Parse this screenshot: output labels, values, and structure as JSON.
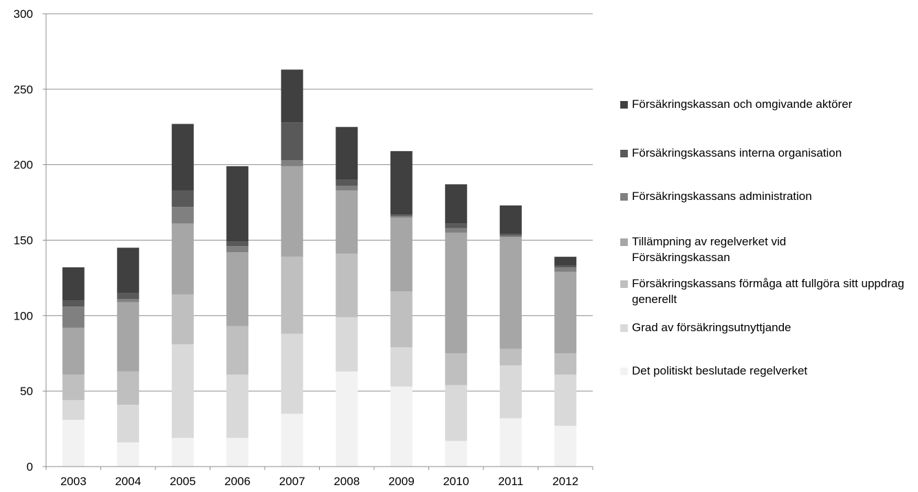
{
  "chart_data": {
    "type": "bar",
    "stacked": true,
    "categories": [
      "2003",
      "2004",
      "2005",
      "2006",
      "2007",
      "2008",
      "2009",
      "2010",
      "2011",
      "2012"
    ],
    "ylim": [
      0,
      300
    ],
    "yticks": [
      "0",
      "50",
      "100",
      "150",
      "200",
      "250",
      "300"
    ],
    "grid": true,
    "legend_position": "right",
    "series": [
      {
        "name": "Det politiskt beslutade regelverket",
        "color": "#f2f2f2",
        "values": [
          31,
          16,
          19,
          19,
          35,
          63,
          53,
          17,
          32,
          27
        ]
      },
      {
        "name": "Grad av försäkringsutnyttjande",
        "color": "#d9d9d9",
        "values": [
          13,
          25,
          62,
          42,
          53,
          36,
          26,
          37,
          35,
          34
        ]
      },
      {
        "name": "Försäkringskassans förmåga att fullgöra sitt uppdrag generellt",
        "color": "#bfbfbf",
        "values": [
          17,
          22,
          33,
          32,
          51,
          42,
          37,
          21,
          11,
          14
        ]
      },
      {
        "name": "Tillämpning av regelverket vid Försäkringskassan",
        "color": "#a6a6a6",
        "values": [
          31,
          46,
          47,
          49,
          60,
          42,
          49,
          80,
          74,
          54
        ]
      },
      {
        "name": "Försäkringskassans administration",
        "color": "#808080",
        "values": [
          14,
          2,
          11,
          4,
          4,
          3,
          1,
          3,
          1,
          3
        ]
      },
      {
        "name": "Försäkringskassans interna organisation",
        "color": "#595959",
        "values": [
          4,
          4,
          11,
          3,
          25,
          4,
          1,
          3,
          1,
          1
        ]
      },
      {
        "name": "Försäkringskassan och omgivande aktörer",
        "color": "#404040",
        "values": [
          22,
          30,
          44,
          50,
          35,
          35,
          42,
          26,
          19,
          6
        ]
      }
    ]
  },
  "legend": {
    "items": [
      {
        "label": "Försäkringskassan och omgivande aktörer",
        "color": "#404040"
      },
      {
        "label": "Försäkringskassans interna organisation",
        "color": "#595959"
      },
      {
        "label": "Försäkringskassans administration",
        "color": "#808080"
      },
      {
        "label": "Tillämpning av regelverket vid Försäkringskassan",
        "color": "#a6a6a6"
      },
      {
        "label": "Försäkringskassans förmåga att fullgöra sitt uppdrag generellt",
        "color": "#bfbfbf"
      },
      {
        "label": "Grad av försäkringsutnyttjande",
        "color": "#d9d9d9"
      },
      {
        "label": "Det politiskt beslutade regelverket",
        "color": "#f2f2f2"
      }
    ]
  }
}
